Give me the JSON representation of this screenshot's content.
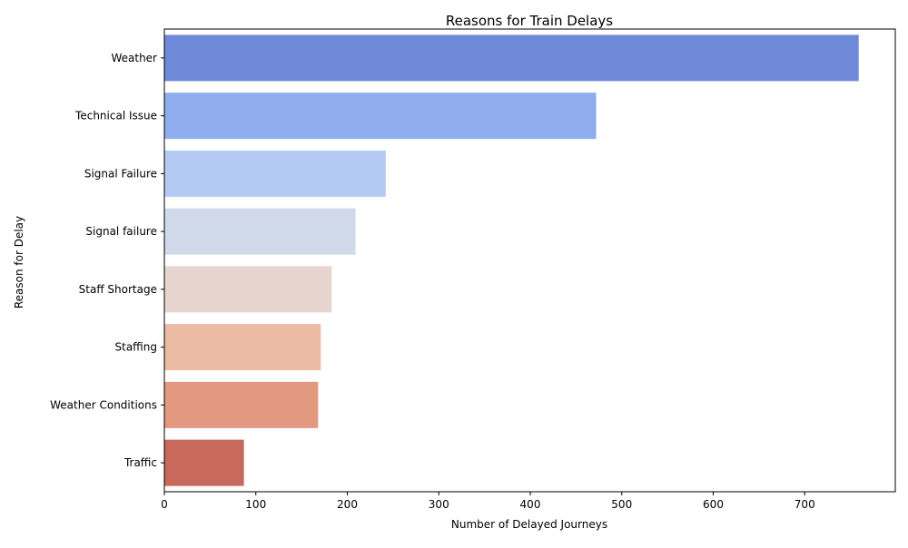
{
  "chart_data": {
    "type": "bar",
    "orientation": "horizontal",
    "title": "Reasons for Train Delays",
    "xlabel": "Number of Delayed Journeys",
    "ylabel": "Reason for Delay",
    "categories": [
      "Weather",
      "Technical Issue",
      "Signal Failure",
      "Signal failure",
      "Staff Shortage",
      "Staffing",
      "Weather Conditions",
      "Traffic"
    ],
    "values": [
      759,
      472,
      242,
      209,
      183,
      171,
      168,
      87
    ],
    "colors": [
      "#6f89d9",
      "#8fadee",
      "#b4caf3",
      "#cfd9e9",
      "#e6d5ce",
      "#ecbba3",
      "#e39880",
      "#c7695d"
    ],
    "xlim": [
      0,
      799
    ],
    "xticks": [
      0,
      100,
      200,
      300,
      400,
      500,
      600,
      700
    ],
    "grid": false,
    "legend": "none"
  }
}
